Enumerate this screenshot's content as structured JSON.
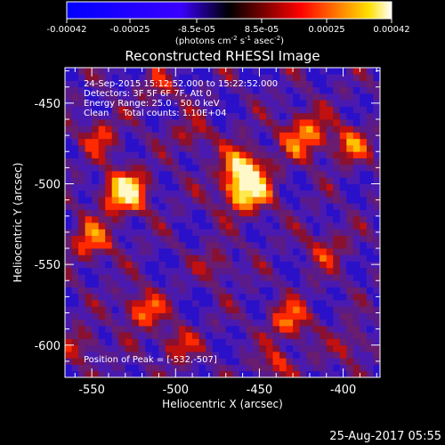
{
  "colorbar": {
    "ticks": [
      "-0.00042",
      "-0.00025",
      "-8.5e-05",
      "8.5e-05",
      "0.00025",
      "0.00042"
    ],
    "units_main": "(photons cm",
    "units_sup1": "-2",
    "units_mid": " s",
    "units_sup2": "-1",
    "units_end": " asec",
    "units_sup3": "-2",
    "units_close": ")"
  },
  "plot": {
    "title": "Reconstructed RHESSI Image",
    "xlabel": "Heliocentric X (arcsec)",
    "ylabel": "Heliocentric Y (arcsec)",
    "xticks": [
      "-550",
      "-500",
      "-450",
      "-400"
    ],
    "yticks": [
      "-450",
      "-500",
      "-550",
      "-600"
    ]
  },
  "annotations": {
    "line1": "24-Sep-2015 15:12:52.000 to 15:22:52.000",
    "line2": "Detectors: 3F 5F 6F 7F, Att 0",
    "line3": "Energy Range: 25.0 - 50.0 keV",
    "line4": "Clean     Total counts: 1.10E+04",
    "peak": "Position of Peak = [-532,-507]"
  },
  "footer": {
    "date": "25-Aug-2017 05:55"
  },
  "chart_data": {
    "type": "heatmap",
    "title": "Reconstructed RHESSI Image",
    "xlabel": "Heliocentric X (arcsec)",
    "ylabel": "Heliocentric Y (arcsec)",
    "xlim": [
      -566,
      -378
    ],
    "ylim": [
      -620,
      -428
    ],
    "color_range": [
      -0.00042,
      0.00042
    ],
    "peak": [
      -532,
      -507
    ],
    "bright_sources": [
      [
        -530,
        -505
      ],
      [
        -458,
        -503
      ],
      [
        -423,
        -470
      ],
      [
        -550,
        -535
      ],
      [
        -520,
        -578
      ],
      [
        -432,
        -585
      ]
    ]
  }
}
